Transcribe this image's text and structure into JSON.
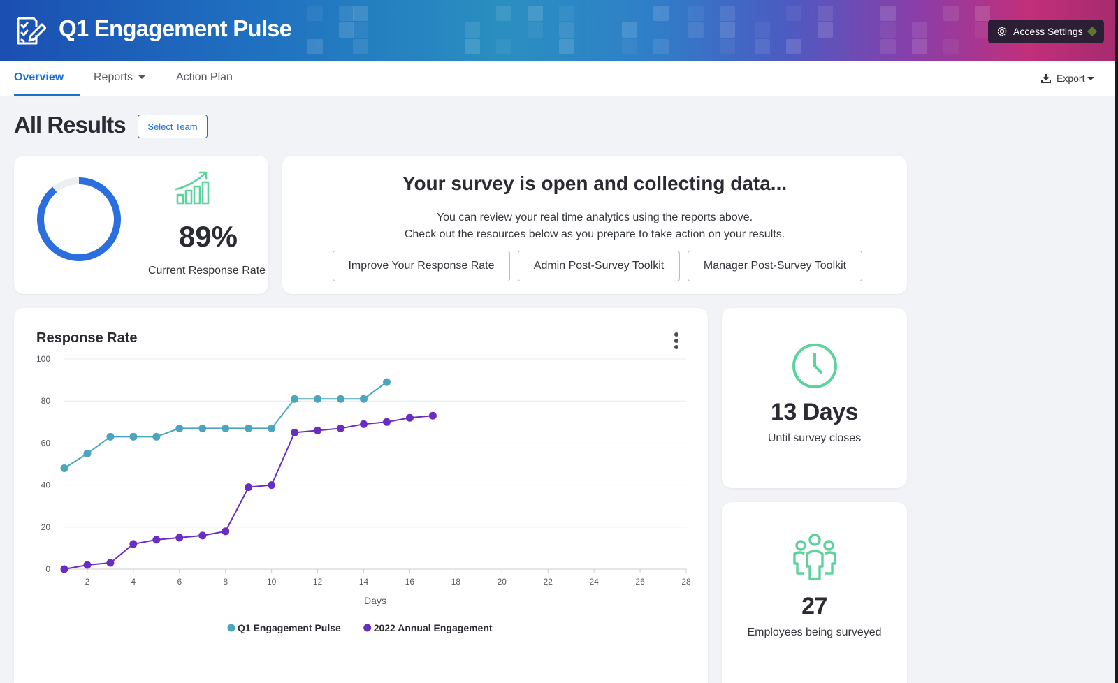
{
  "header": {
    "title": "Q1 Engagement Pulse",
    "logo_icon": "checklist-edit-icon",
    "access_settings_label": "Access Settings",
    "access_settings_icon": "gear-icon",
    "colors": {
      "gradient_start": "#1b4fb2",
      "gradient_mid": "#2a8fc0",
      "gradient_end": "#c22f7a"
    }
  },
  "tabs": [
    {
      "label": "Overview",
      "active": true
    },
    {
      "label": "Reports",
      "active": false,
      "dropdown": true
    },
    {
      "label": "Action Plan",
      "active": false
    }
  ],
  "export": {
    "label": "Export",
    "icon": "download-icon"
  },
  "page": {
    "title": "All Results",
    "select_team_label": "Select Team"
  },
  "response_card": {
    "value": "89%",
    "percent": 89,
    "label": "Current Response Rate",
    "icon": "chart-trend-up-icon",
    "accent": "#2a6ee0"
  },
  "open_card": {
    "title": "Your survey is open and collecting data...",
    "line1": "You can review your real time analytics using the reports above.",
    "line2": "Check out the resources below as you prepare to take action on your results.",
    "buttons": [
      "Improve Your Response Rate",
      "Admin Post-Survey Toolkit",
      "Manager Post-Survey Toolkit"
    ]
  },
  "days_card": {
    "value": "13 Days",
    "label": "Until survey closes",
    "icon": "clock-icon"
  },
  "employees_card": {
    "value": "27",
    "label": "Employees being surveyed",
    "icon": "people-group-icon"
  },
  "chart_data": {
    "type": "line",
    "title": "Response Rate",
    "xlabel": "Days",
    "ylabel": "",
    "xlim": [
      1,
      28
    ],
    "ylim": [
      0,
      100
    ],
    "xticks": [
      2,
      4,
      6,
      8,
      10,
      12,
      14,
      16,
      18,
      20,
      22,
      24,
      26,
      28
    ],
    "yticks": [
      0,
      20,
      40,
      60,
      80,
      100
    ],
    "grid": true,
    "legend": "bottom-center",
    "series": [
      {
        "name": "Q1 Engagement Pulse",
        "color": "#4ba6bd",
        "x": [
          1,
          2,
          3,
          4,
          5,
          6,
          7,
          8,
          9,
          10,
          11,
          12,
          13,
          14,
          15
        ],
        "y": [
          48,
          55,
          63,
          63,
          63,
          67,
          67,
          67,
          67,
          67,
          81,
          81,
          81,
          81,
          89
        ]
      },
      {
        "name": "2022 Annual Engagement",
        "color": "#6a2dc2",
        "x": [
          1,
          2,
          3,
          4,
          5,
          6,
          7,
          8,
          9,
          10,
          11,
          12,
          13,
          14,
          15,
          16,
          17
        ],
        "y": [
          0,
          2,
          3,
          12,
          14,
          15,
          16,
          18,
          39,
          40,
          65,
          66,
          67,
          69,
          70,
          72,
          73
        ]
      }
    ]
  }
}
